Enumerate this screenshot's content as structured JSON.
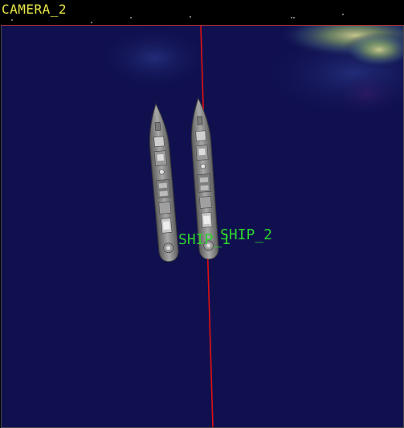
{
  "camera": {
    "name": "CAMERA_2"
  },
  "ships": [
    {
      "id": "ship_1",
      "label": "SHIP_1"
    },
    {
      "id": "ship_2",
      "label": "SHIP_2"
    }
  ],
  "colors": {
    "ocean": "#10104f",
    "camera_label": "#e8e84a",
    "ship_label": "#2fd02f",
    "track_line": "#e01010",
    "hull": "#8a8a8a"
  }
}
